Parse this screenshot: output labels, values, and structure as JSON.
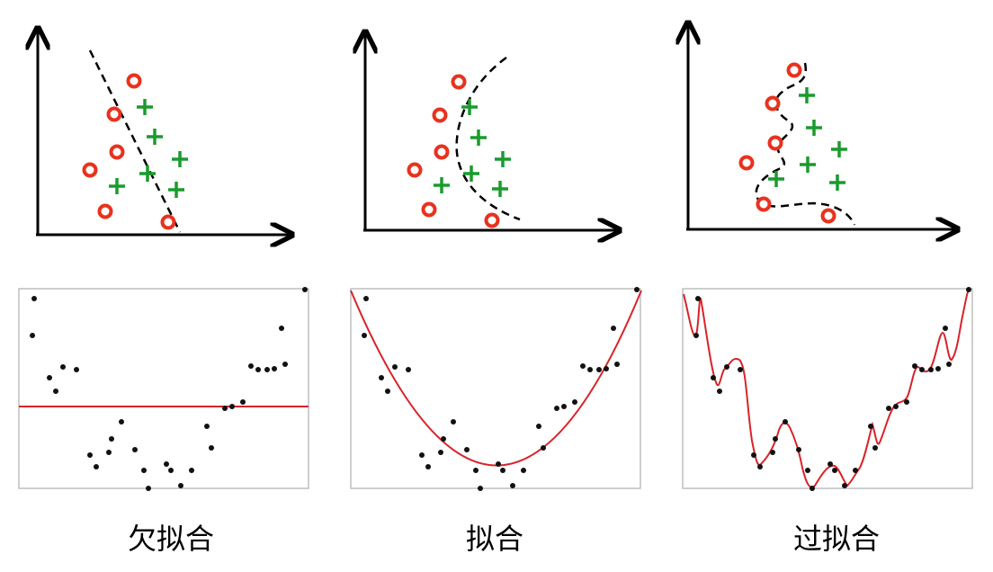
{
  "captions": [
    "欠拟合",
    "拟合",
    "过拟合"
  ],
  "colors": {
    "circle": "#e8321e",
    "plus": "#1a9b2e",
    "curve": "#d8232a",
    "dot": "#111111",
    "axis": "#000000",
    "frame": "#bfbfbf"
  }
}
